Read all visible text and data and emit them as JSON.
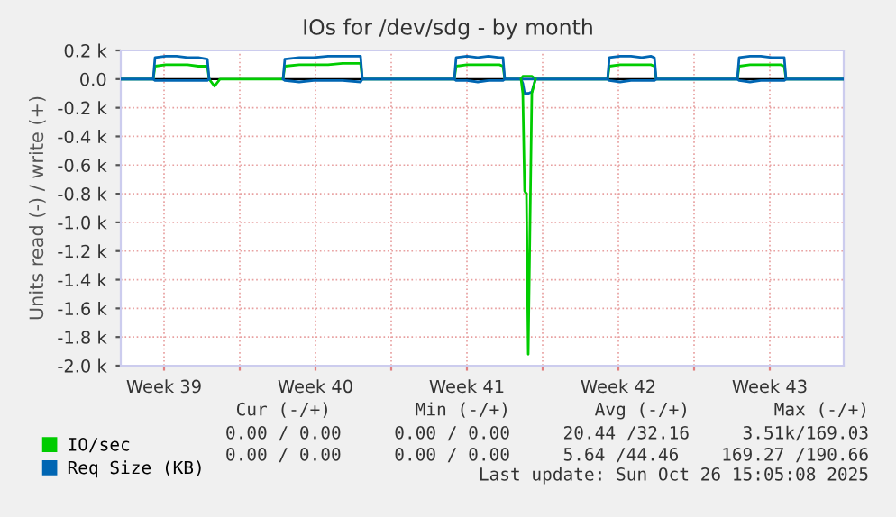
{
  "chart_data": {
    "type": "line",
    "title": "IOs for /dev/sdg - by month",
    "ylabel": "Units read (-) / write (+)",
    "x": [
      "2025-09-23T12:00",
      "2025-09-25T00:00",
      "2025-09-25T02:00",
      "2025-09-25T14:00",
      "2025-09-26T02:00",
      "2025-09-26T14:00",
      "2025-09-27T02:00",
      "2025-09-27T12:00",
      "2025-09-27T14:00",
      "2025-09-27T20:00",
      "2025-09-28T02:00",
      "2025-10-01T00:00",
      "2025-10-01T02:00",
      "2025-10-01T18:00",
      "2025-10-02T10:00",
      "2025-10-03T02:00",
      "2025-10-03T18:00",
      "2025-10-04T14:00",
      "2025-10-04T16:00",
      "2025-10-08T22:00",
      "2025-10-09T00:00",
      "2025-10-09T12:00",
      "2025-10-10T00:00",
      "2025-10-10T12:00",
      "2025-10-11T00:00",
      "2025-10-11T04:00",
      "2025-10-11T06:00",
      "2025-10-12T00:00",
      "2025-10-12T02:00",
      "2025-10-12T04:00",
      "2025-10-12T06:00",
      "2025-10-12T08:00",
      "2025-10-12T12:00",
      "2025-10-12T16:00",
      "2025-10-16T00:00",
      "2025-10-16T02:00",
      "2025-10-16T14:00",
      "2025-10-17T02:00",
      "2025-10-17T14:00",
      "2025-10-18T00:00",
      "2025-10-18T04:00",
      "2025-10-18T06:00",
      "2025-10-22T00:00",
      "2025-10-22T02:00",
      "2025-10-22T14:00",
      "2025-10-23T02:00",
      "2025-10-23T14:00",
      "2025-10-24T00:00",
      "2025-10-24T04:00",
      "2025-10-24T06:00",
      "2025-10-26T22:00"
    ],
    "series": [
      {
        "name": "IO/sec",
        "color": "#00cc00",
        "values": [
          0,
          0,
          90,
          100,
          100,
          100,
          90,
          90,
          0,
          -50,
          0,
          0,
          90,
          100,
          100,
          100,
          110,
          110,
          0,
          0,
          90,
          100,
          100,
          100,
          100,
          90,
          0,
          0,
          20,
          20,
          20,
          20,
          20,
          0,
          0,
          90,
          100,
          100,
          100,
          100,
          90,
          0,
          0,
          90,
          100,
          100,
          100,
          100,
          90,
          0,
          0
        ]
      },
      {
        "name": "Req Size (KB)",
        "color": "#0066b3",
        "values": [
          0,
          0,
          150,
          160,
          160,
          150,
          150,
          140,
          0,
          null,
          null,
          0,
          140,
          150,
          150,
          160,
          160,
          160,
          0,
          0,
          150,
          160,
          150,
          160,
          150,
          150,
          0,
          0,
          0,
          0,
          0,
          0,
          0,
          0,
          0,
          150,
          160,
          160,
          150,
          160,
          150,
          0,
          0,
          150,
          160,
          160,
          150,
          150,
          150,
          0,
          0
        ]
      },
      {
        "color": "#0066b3",
        "values": [
          0,
          0,
          -10,
          -10,
          -10,
          -10,
          -10,
          -10,
          0,
          null,
          null,
          0,
          -10,
          -20,
          -10,
          -10,
          -10,
          -20,
          0,
          0,
          -10,
          -10,
          -20,
          -10,
          -10,
          -10,
          0,
          0,
          -30,
          -100,
          -100,
          -100,
          -90,
          0,
          0,
          -10,
          -20,
          -10,
          -10,
          -10,
          -10,
          0,
          0,
          -10,
          -20,
          -10,
          -10,
          -10,
          -10,
          0,
          0
        ]
      },
      {
        "color": "#00cc00",
        "values": [
          null,
          null,
          null,
          null,
          null,
          null,
          null,
          null,
          null,
          null,
          null,
          null,
          null,
          null,
          null,
          null,
          null,
          null,
          null,
          null,
          null,
          null,
          null,
          null,
          null,
          null,
          null,
          0,
          -100,
          -780,
          -800,
          -1920,
          -100,
          0,
          null,
          null,
          null,
          null,
          null,
          null,
          null,
          null,
          null,
          null,
          null,
          null,
          null,
          null,
          null,
          null,
          null
        ]
      }
    ],
    "xlim": [
      "2025-09-23T12:00",
      "2025-10-26T22:00"
    ],
    "xticks": [
      {
        "value": "2025-09-25T12:00",
        "label": "Week 39"
      },
      {
        "value": "2025-09-29T00:00",
        "label": null
      },
      {
        "value": "2025-10-02T12:00",
        "label": "Week 40"
      },
      {
        "value": "2025-10-06T00:00",
        "label": null
      },
      {
        "value": "2025-10-09T12:00",
        "label": "Week 41"
      },
      {
        "value": "2025-10-13T00:00",
        "label": null
      },
      {
        "value": "2025-10-16T12:00",
        "label": "Week 42"
      },
      {
        "value": "2025-10-20T00:00",
        "label": null
      },
      {
        "value": "2025-10-23T12:00",
        "label": "Week 43"
      }
    ],
    "ylim": [
      -2000,
      200
    ],
    "yticks": [
      {
        "value": 200,
        "label": "0.2 k"
      },
      {
        "value": 0,
        "label": "0.0"
      },
      {
        "value": -200,
        "label": "-0.2 k"
      },
      {
        "value": -400,
        "label": "-0.4 k"
      },
      {
        "value": -600,
        "label": "-0.6 k"
      },
      {
        "value": -800,
        "label": "-0.8 k"
      },
      {
        "value": -1000,
        "label": "-1.0 k"
      },
      {
        "value": -1200,
        "label": "-1.2 k"
      },
      {
        "value": -1400,
        "label": "-1.4 k"
      },
      {
        "value": -1600,
        "label": "-1.6 k"
      },
      {
        "value": -1800,
        "label": "-1.8 k"
      },
      {
        "value": -2000,
        "label": "-2.0 k"
      }
    ],
    "ref_lines": [
      {
        "axis": "y",
        "value": 0,
        "color": "#000000"
      }
    ],
    "grid": true,
    "legend": "bottom",
    "annotations": [
      "Cur (-/+)        Min (-/+)        Avg (-/+)        Max (-/+)",
      "0.00 / 0.00     0.00 / 0.00     20.44 /32.16     3.51k/169.03",
      "0.00 / 0.00     0.00 / 0.00     5.64 /44.46    169.27 /190.66",
      "Last update: Sun Oct 26 15:05:08 2025"
    ]
  }
}
